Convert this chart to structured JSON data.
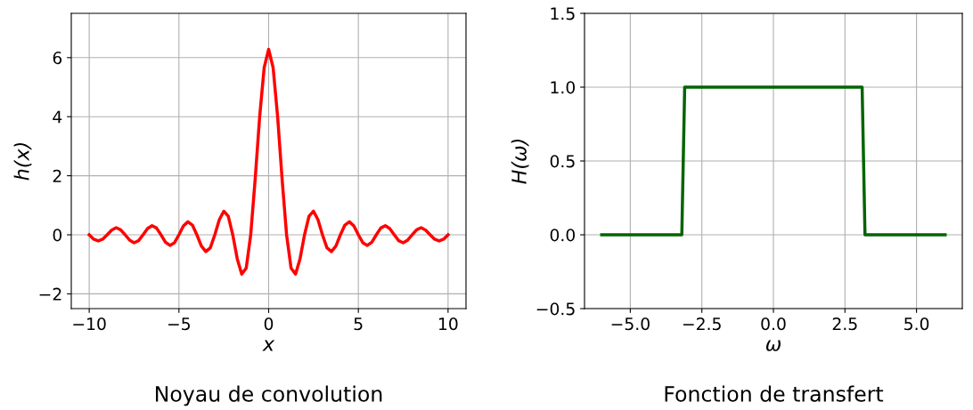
{
  "chart_data": [
    {
      "type": "line",
      "title": "Noyau de convolution",
      "xlabel": "x",
      "ylabel": "h(x)",
      "x": [
        -10,
        -9.75,
        -9.5,
        -9.25,
        -9,
        -8.75,
        -8.5,
        -8.25,
        -8,
        -7.75,
        -7.5,
        -7.25,
        -7,
        -6.75,
        -6.5,
        -6.25,
        -6,
        -5.75,
        -5.5,
        -5.25,
        -5,
        -4.75,
        -4.5,
        -4.25,
        -4,
        -3.75,
        -3.5,
        -3.25,
        -3,
        -2.75,
        -2.5,
        -2.25,
        -2,
        -1.75,
        -1.5,
        -1.25,
        -1,
        -0.75,
        -0.5,
        -0.25,
        0,
        0.25,
        0.5,
        0.75,
        1,
        1.25,
        1.5,
        1.75,
        2,
        2.25,
        2.5,
        2.75,
        3,
        3.25,
        3.5,
        3.75,
        4,
        4.25,
        4.5,
        4.75,
        5,
        5.25,
        5.5,
        5.75,
        6,
        6.25,
        6.5,
        6.75,
        7,
        7.25,
        7.5,
        7.75,
        8,
        8.25,
        8.5,
        8.75,
        9,
        9.25,
        9.5,
        9.75,
        10
      ],
      "series": [
        {
          "color": "#ff0000",
          "values": [
            0,
            -0.15,
            -0.21,
            -0.15,
            0,
            0.16,
            0.24,
            0.17,
            0,
            -0.18,
            -0.27,
            -0.2,
            0,
            0.21,
            0.31,
            0.23,
            0,
            -0.25,
            -0.36,
            -0.27,
            0,
            0.3,
            0.44,
            0.33,
            0,
            -0.38,
            -0.57,
            -0.44,
            0,
            0.51,
            0.8,
            0.63,
            0,
            -0.81,
            -1.33,
            -1.13,
            0,
            1.89,
            4,
            5.66,
            6.28,
            5.66,
            4,
            1.89,
            0,
            -1.13,
            -1.33,
            -0.81,
            0,
            0.63,
            0.8,
            0.51,
            0,
            -0.44,
            -0.57,
            -0.38,
            0,
            0.33,
            0.44,
            0.3,
            0,
            -0.27,
            -0.36,
            -0.25,
            0,
            0.23,
            0.31,
            0.21,
            0,
            -0.2,
            -0.27,
            -0.18,
            0,
            0.17,
            0.24,
            0.16,
            0,
            -0.15,
            -0.21,
            -0.15,
            0
          ]
        }
      ],
      "xlim": [
        -11,
        11
      ],
      "ylim": [
        -2.5,
        7.5
      ],
      "xticks": [
        {
          "value": -10,
          "label": "−10"
        },
        {
          "value": -5,
          "label": "−5"
        },
        0,
        5,
        10
      ],
      "yticks": [
        {
          "value": -2,
          "label": "−2"
        },
        0,
        2,
        4,
        6
      ],
      "grid": true,
      "marker": "none",
      "line_style": "solid"
    },
    {
      "type": "line",
      "title": "Fonction de transfert",
      "xlabel": "ω",
      "ylabel": "H(ω)",
      "x": [
        -6,
        -3.2,
        -3.1,
        3.1,
        3.2,
        6
      ],
      "series": [
        {
          "color": "#006400",
          "values": [
            0,
            0,
            1,
            1,
            0,
            0
          ]
        }
      ],
      "xlim": [
        -6.6,
        6.6
      ],
      "ylim": [
        -0.5,
        1.5
      ],
      "xticks": [
        {
          "value": -5,
          "label": "−5.0"
        },
        {
          "value": -2.5,
          "label": "−2.5"
        },
        {
          "value": 0,
          "label": "0.0"
        },
        {
          "value": 2.5,
          "label": "2.5"
        },
        {
          "value": 5,
          "label": "5.0"
        }
      ],
      "yticks": [
        {
          "value": -0.5,
          "label": "−0.5"
        },
        {
          "value": 0,
          "label": "0.0"
        },
        {
          "value": 0.5,
          "label": "0.5"
        },
        {
          "value": 1,
          "label": "1.0"
        },
        {
          "value": 1.5,
          "label": "1.5"
        }
      ],
      "grid": true,
      "marker": "none",
      "line_style": "solid"
    }
  ]
}
